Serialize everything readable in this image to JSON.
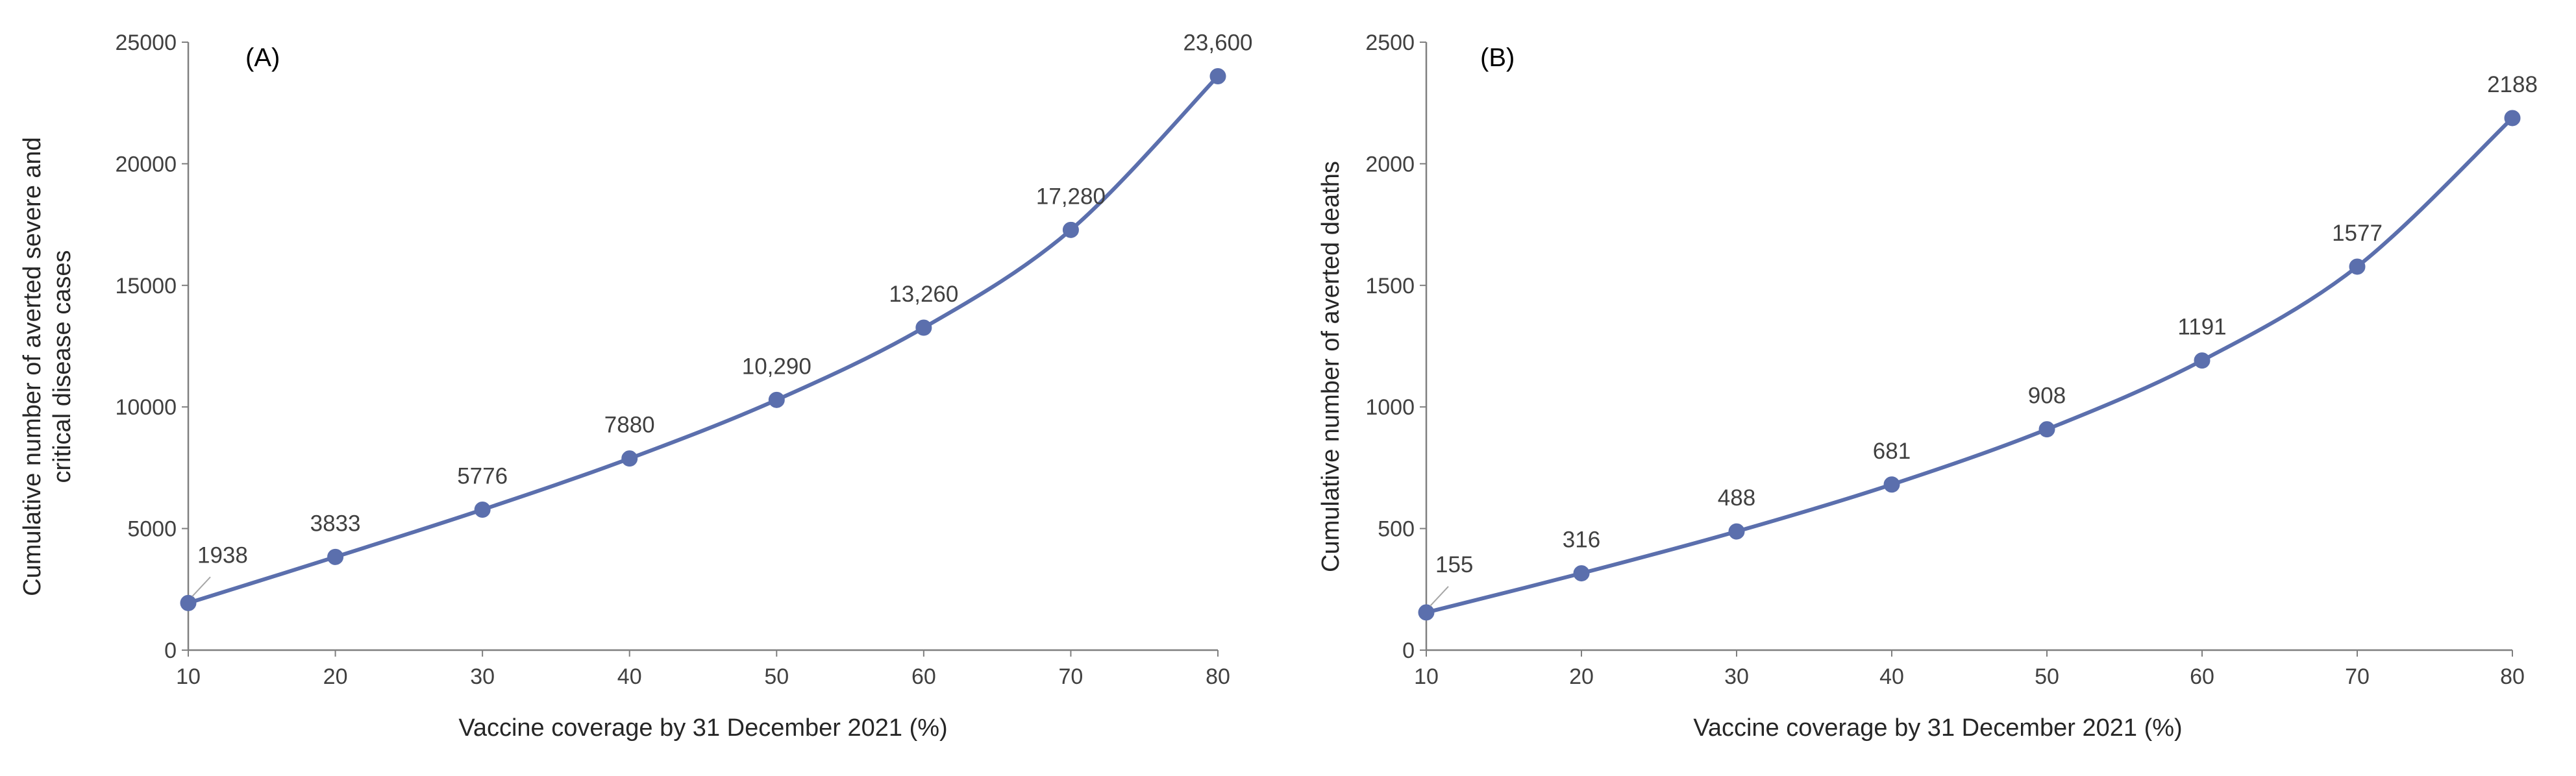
{
  "chart_data": [
    {
      "type": "line",
      "panel": "(A)",
      "title": "",
      "xlabel": "Vaccine coverage by 31 December 2021 (%)",
      "ylabel_lines": [
        "Cumulative number of averted severe and",
        "critical disease cases"
      ],
      "x": [
        10,
        20,
        30,
        40,
        50,
        60,
        70,
        80
      ],
      "values": [
        1938,
        3833,
        5776,
        7880,
        10290,
        13260,
        17280,
        23600
      ],
      "data_labels": [
        "1938",
        "3833",
        "5776",
        "7880",
        "10,290",
        "13,260",
        "17,280",
        "23,600"
      ],
      "xlim": [
        10,
        80
      ],
      "ylim": [
        0,
        25000
      ],
      "x_ticks": [
        "10",
        "20",
        "30",
        "40",
        "50",
        "60",
        "70",
        "80"
      ],
      "y_ticks": [
        "0",
        "5000",
        "10000",
        "15000",
        "20000",
        "25000"
      ],
      "color": "#5b6fad",
      "grid": false
    },
    {
      "type": "line",
      "panel": "(B)",
      "title": "",
      "xlabel": "Vaccine coverage by 31 December 2021 (%)",
      "ylabel_lines": [
        "Cumulative number of averted deaths"
      ],
      "x": [
        10,
        20,
        30,
        40,
        50,
        60,
        70,
        80
      ],
      "values": [
        155,
        316,
        488,
        681,
        908,
        1191,
        1577,
        2188
      ],
      "data_labels": [
        "155",
        "316",
        "488",
        "681",
        "908",
        "1191",
        "1577",
        "2188"
      ],
      "xlim": [
        10,
        80
      ],
      "ylim": [
        0,
        2500
      ],
      "x_ticks": [
        "10",
        "20",
        "30",
        "40",
        "50",
        "60",
        "70",
        "80"
      ],
      "y_ticks": [
        "0",
        "500",
        "1000",
        "1500",
        "2000",
        "2500"
      ],
      "color": "#5b6fad",
      "grid": false
    }
  ]
}
